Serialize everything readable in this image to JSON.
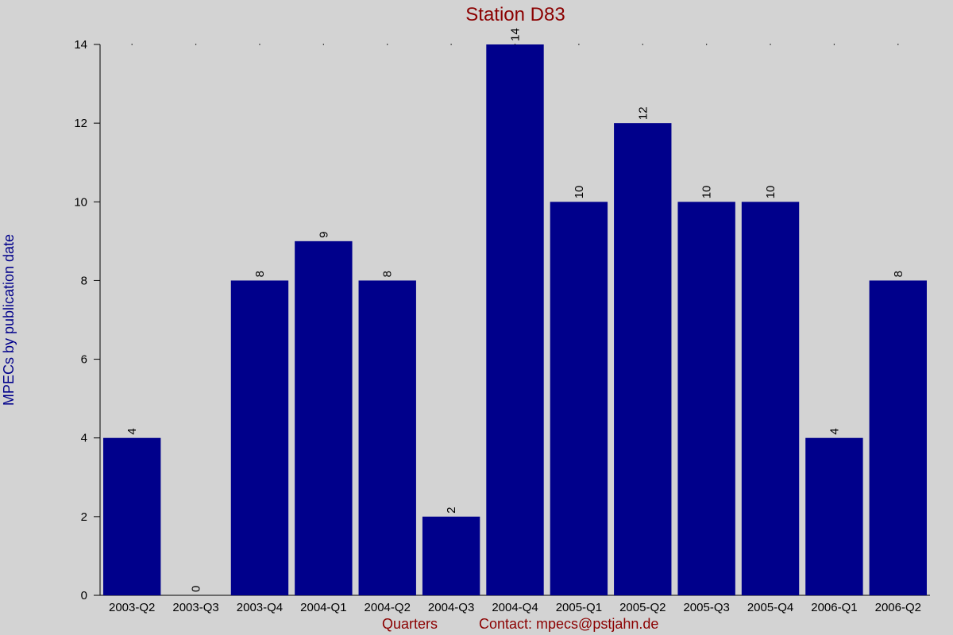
{
  "chart_data": {
    "type": "bar",
    "title": "Station D83",
    "xlabel": "Quarters",
    "ylabel": "MPECs by publication date",
    "contact": "Contact: mpecs@pstjahn.de",
    "categories": [
      "2003-Q2",
      "2003-Q3",
      "2003-Q4",
      "2004-Q1",
      "2004-Q2",
      "2004-Q3",
      "2004-Q4",
      "2005-Q1",
      "2005-Q2",
      "2005-Q3",
      "2005-Q4",
      "2006-Q1",
      "2006-Q2"
    ],
    "values": [
      4,
      0,
      8,
      9,
      8,
      2,
      14,
      10,
      12,
      10,
      10,
      4,
      8
    ],
    "ylim": [
      0,
      14
    ],
    "yticks": [
      0,
      2,
      4,
      6,
      8,
      10,
      12,
      14
    ],
    "bar_color": "#00008b",
    "title_color": "#8b0000",
    "ylabel_color": "#00008b",
    "footer_color": "#8b0000",
    "background": "#d3d3d3",
    "grid": false
  }
}
